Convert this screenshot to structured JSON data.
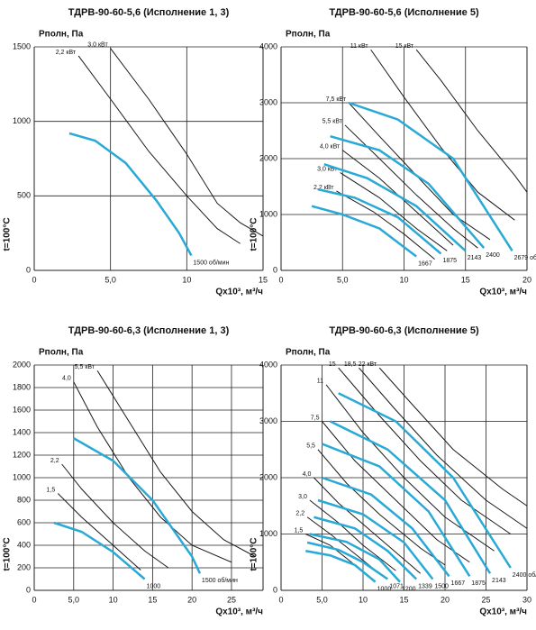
{
  "chart_data": [
    {
      "type": "line",
      "title": "ТДРВ-90-60-5,6 (Исполнение 1, 3)",
      "y_label": "Pполн, Па",
      "x_label": "Qx10³, м³/ч",
      "note": "t=100°C",
      "grid": true,
      "xlim": [
        0,
        15
      ],
      "xticks": [
        0,
        {
          "value": 5,
          "label": "5,0"
        },
        10,
        15
      ],
      "ylim": [
        0,
        1500
      ],
      "yticks": [
        0,
        500,
        1000,
        1500
      ],
      "series": [
        {
          "name": "2,2 кВт",
          "color": "#1a1a1a",
          "x": [
            2.9,
            5,
            7.5,
            10,
            12,
            13.5
          ],
          "values": [
            1440,
            1150,
            800,
            500,
            280,
            180
          ]
        },
        {
          "name": "3,0 кВт",
          "color": "#1a1a1a",
          "x": [
            5,
            7.5,
            10,
            12,
            13.5,
            15
          ],
          "values": [
            1490,
            1150,
            780,
            450,
            320,
            230
          ]
        },
        {
          "name": "1500 об/мин",
          "color": "#29a9d6",
          "x": [
            2.3,
            4,
            6,
            8,
            9.5,
            10.3
          ],
          "values": [
            920,
            870,
            720,
            470,
            250,
            100
          ]
        }
      ]
    },
    {
      "type": "line",
      "title": "ТДРВ-90-60-5,6 (Исполнение 5)",
      "y_label": "Pполн, Па",
      "x_label": "Qx10³, м³/ч",
      "note": "t=100°C",
      "grid": true,
      "xlim": [
        0,
        20
      ],
      "xticks": [
        0,
        {
          "value": 5,
          "label": "5,0"
        },
        10,
        15,
        20
      ],
      "ylim": [
        0,
        4000
      ],
      "yticks": [
        0,
        1000,
        2000,
        3000,
        4000
      ],
      "series": [
        {
          "name": "11 кВт",
          "color": "#1a1a1a",
          "x": [
            7.3,
            10,
            13,
            16,
            19
          ],
          "values": [
            3950,
            3100,
            2200,
            1400,
            900
          ]
        },
        {
          "name": "15 кВт",
          "color": "#1a1a1a",
          "x": [
            11,
            13,
            16,
            19,
            20
          ],
          "values": [
            3950,
            3400,
            2500,
            1700,
            1400
          ]
        },
        {
          "name": "7,5 кВт",
          "color": "#1a1a1a",
          "x": [
            5.5,
            8,
            11,
            14,
            17
          ],
          "values": [
            3000,
            2400,
            1700,
            1000,
            550
          ]
        },
        {
          "name": "5,5 кВт",
          "color": "#1a1a1a",
          "x": [
            5.2,
            8,
            11,
            14,
            16
          ],
          "values": [
            2600,
            2000,
            1350,
            750,
            400
          ]
        },
        {
          "name": "4,0 кВт",
          "color": "#1a1a1a",
          "x": [
            5,
            8,
            11,
            14
          ],
          "values": [
            2150,
            1650,
            1050,
            450
          ]
        },
        {
          "name": "3,0 кВт",
          "color": "#1a1a1a",
          "x": [
            4.8,
            8,
            11,
            13.5
          ],
          "values": [
            1750,
            1300,
            750,
            350
          ]
        },
        {
          "name": "2,2 кВт",
          "color": "#1a1a1a",
          "x": [
            4.5,
            7.5,
            10,
            12.5
          ],
          "values": [
            1420,
            1050,
            650,
            200
          ]
        },
        {
          "name": "1667",
          "color": "#29a9d6",
          "x": [
            2.5,
            5,
            8,
            11
          ],
          "values": [
            1150,
            1000,
            750,
            250
          ]
        },
        {
          "name": "1875",
          "color": "#29a9d6",
          "x": [
            3,
            6,
            9.5,
            13
          ],
          "values": [
            1450,
            1300,
            950,
            300
          ]
        },
        {
          "name": "2143",
          "color": "#29a9d6",
          "x": [
            3.5,
            7,
            11,
            15
          ],
          "values": [
            1900,
            1650,
            1150,
            350
          ]
        },
        {
          "name": "2400",
          "color": "#29a9d6",
          "x": [
            4,
            8,
            12,
            16.5
          ],
          "values": [
            2400,
            2150,
            1550,
            400
          ]
        },
        {
          "name": "2679 об/мин",
          "color": "#29a9d6",
          "x": [
            5.5,
            9.5,
            14,
            18.8
          ],
          "values": [
            3000,
            2700,
            2000,
            350
          ]
        }
      ]
    },
    {
      "type": "line",
      "title": "ТДРВ-90-60-6,3 (Исполнение 1, 3)",
      "y_label": "Pполн, Па",
      "x_label": "Qx10³, м³/ч",
      "note": "t=100°C",
      "grid": true,
      "xlim": [
        0,
        29
      ],
      "xticks": [
        0,
        {
          "value": 5,
          "label": "5,0"
        },
        10,
        15,
        20,
        25
      ],
      "ylim": [
        0,
        2000
      ],
      "yticks": [
        0,
        200,
        400,
        600,
        800,
        1000,
        1200,
        1400,
        1600,
        1800,
        2000
      ],
      "series": [
        {
          "name": "5,5 кВт",
          "color": "#1a1a1a",
          "x": [
            8,
            12,
            16,
            20,
            24,
            28
          ],
          "values": [
            1950,
            1500,
            1050,
            700,
            450,
            300
          ]
        },
        {
          "name": "4,0",
          "color": "#1a1a1a",
          "x": [
            5,
            8,
            12,
            16,
            20,
            25
          ],
          "values": [
            1850,
            1450,
            1000,
            650,
            400,
            250
          ]
        },
        {
          "name": "2,2",
          "color": "#1a1a1a",
          "x": [
            3.5,
            6,
            10,
            14,
            17
          ],
          "values": [
            1120,
            900,
            600,
            350,
            200
          ]
        },
        {
          "name": "1,5",
          "color": "#1a1a1a",
          "x": [
            3,
            6,
            10,
            13.5
          ],
          "values": [
            860,
            650,
            400,
            180
          ]
        },
        {
          "name": "1500 об/мин",
          "color": "#29a9d6",
          "x": [
            5,
            10,
            15,
            20,
            21
          ],
          "values": [
            1350,
            1150,
            800,
            300,
            150
          ]
        },
        {
          "name": "1000",
          "color": "#29a9d6",
          "x": [
            2.5,
            6,
            10,
            14
          ],
          "values": [
            600,
            520,
            340,
            100
          ]
        }
      ]
    },
    {
      "type": "line",
      "title": "ТДРВ-90-60-6,3 (Исполнение 5)",
      "y_label": "Pполн, Па",
      "x_label": "Qx10³, м³/ч",
      "note": "t=100°C",
      "grid": true,
      "xlim": [
        0,
        30
      ],
      "xticks": [
        0,
        {
          "value": 5,
          "label": "5,0"
        },
        10,
        15,
        20,
        25,
        30
      ],
      "ylim": [
        0,
        4000
      ],
      "yticks": [
        0,
        1000,
        2000,
        3000,
        4000
      ],
      "series": [
        {
          "name": "15",
          "color": "#1a1a1a",
          "x": [
            7,
            12,
            17,
            22,
            28
          ],
          "values": [
            3950,
            3100,
            2300,
            1600,
            1000
          ]
        },
        {
          "name": "18,5",
          "color": "#1a1a1a",
          "x": [
            9.5,
            14,
            19,
            25,
            30
          ],
          "values": [
            3950,
            3200,
            2400,
            1600,
            1100
          ]
        },
        {
          "name": "22 кВт",
          "color": "#1a1a1a",
          "x": [
            12,
            16,
            21,
            27,
            30
          ],
          "values": [
            3950,
            3300,
            2500,
            1800,
            1500
          ]
        },
        {
          "name": "11",
          "color": "#1a1a1a",
          "x": [
            5.5,
            10,
            15,
            20,
            26
          ],
          "values": [
            3650,
            2800,
            2000,
            1300,
            700
          ]
        },
        {
          "name": "7,5",
          "color": "#1a1a1a",
          "x": [
            5,
            9,
            14,
            19,
            23
          ],
          "values": [
            3000,
            2300,
            1600,
            900,
            500
          ]
        },
        {
          "name": "5,5",
          "color": "#1a1a1a",
          "x": [
            4.5,
            8,
            12,
            17,
            20
          ],
          "values": [
            2500,
            1900,
            1350,
            750,
            450
          ]
        },
        {
          "name": "4,0",
          "color": "#1a1a1a",
          "x": [
            4,
            7,
            11,
            15,
            17
          ],
          "values": [
            2000,
            1550,
            1050,
            550,
            300
          ]
        },
        {
          "name": "3,0",
          "color": "#1a1a1a",
          "x": [
            3.5,
            7,
            10,
            14
          ],
          "values": [
            1600,
            1200,
            800,
            350
          ]
        },
        {
          "name": "2,2",
          "color": "#1a1a1a",
          "x": [
            3.2,
            6,
            9,
            12
          ],
          "values": [
            1300,
            1000,
            650,
            300
          ]
        },
        {
          "name": "1,5",
          "color": "#1a1a1a",
          "x": [
            3,
            6,
            9,
            11
          ],
          "values": [
            1000,
            800,
            450,
            200
          ]
        },
        {
          "name": "1000",
          "color": "#29a9d6",
          "x": [
            3,
            6,
            9,
            11.5
          ],
          "values": [
            700,
            620,
            450,
            150
          ]
        },
        {
          "name": "1071",
          "color": "#29a9d6",
          "x": [
            3.2,
            7,
            10,
            13
          ],
          "values": [
            850,
            720,
            500,
            200
          ]
        },
        {
          "name": "1200",
          "color": "#29a9d6",
          "x": [
            3.5,
            8,
            12,
            14.5
          ],
          "values": [
            1000,
            860,
            550,
            150
          ]
        },
        {
          "name": "1339",
          "color": "#29a9d6",
          "x": [
            4,
            9,
            13,
            16.5
          ],
          "values": [
            1300,
            1100,
            700,
            200
          ]
        },
        {
          "name": "1500",
          "color": "#29a9d6",
          "x": [
            4.5,
            10,
            15,
            18.5
          ],
          "values": [
            1600,
            1350,
            850,
            200
          ]
        },
        {
          "name": "1667",
          "color": "#29a9d6",
          "x": [
            5,
            11,
            16,
            20.5
          ],
          "values": [
            2000,
            1700,
            1100,
            250
          ]
        },
        {
          "name": "1875",
          "color": "#29a9d6",
          "x": [
            5,
            12,
            18,
            23
          ],
          "values": [
            2600,
            2200,
            1400,
            250
          ]
        },
        {
          "name": "2143",
          "color": "#29a9d6",
          "x": [
            6,
            13,
            20,
            25.5
          ],
          "values": [
            3000,
            2500,
            1600,
            300
          ]
        },
        {
          "name": "2400 об/мин",
          "color": "#29a9d6",
          "x": [
            7,
            14,
            21,
            28
          ],
          "values": [
            3500,
            3000,
            2000,
            400
          ]
        }
      ]
    }
  ]
}
